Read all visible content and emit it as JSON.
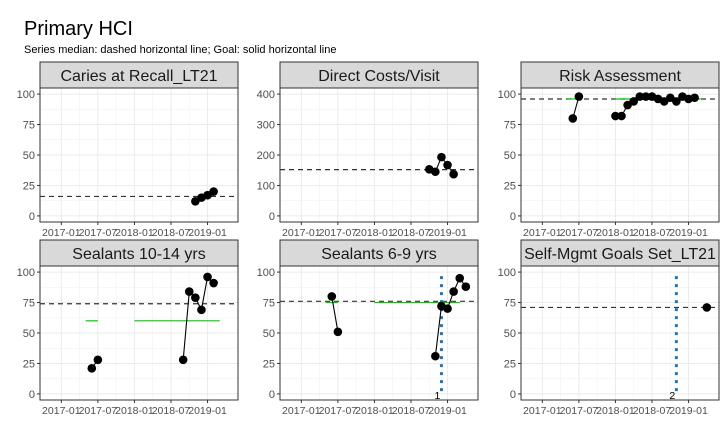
{
  "title": "Primary HCI",
  "subtitle": "Series median: dashed horizontal line; Goal: solid horizontal line",
  "colors": {
    "points": "#000000",
    "median": "#333333",
    "goal": "#00cc00",
    "annotation": "#1f77b4",
    "strip": "#d9d9d9",
    "grid": "#ebebeb"
  },
  "chart_data": [
    {
      "type": "line",
      "title": "Caries at Recall_LT21",
      "x_ticks": [
        "2017-01",
        "2017-07",
        "2018-01",
        "2018-07",
        "2019-01"
      ],
      "y_ticks": [
        0,
        25,
        50,
        75,
        100
      ],
      "ylim": [
        -5,
        105
      ],
      "series": [
        {
          "x": [
            "2018-11",
            "2018-12",
            "2019-01",
            "2019-02"
          ],
          "y": [
            12,
            15,
            17,
            20
          ]
        }
      ],
      "median": 16,
      "goal": null,
      "annotations": []
    },
    {
      "type": "line",
      "title": "Direct Costs/Visit",
      "x_ticks": [
        "2017-01",
        "2017-07",
        "2018-01",
        "2018-07",
        "2019-01"
      ],
      "y_ticks": [
        0,
        100,
        200,
        300,
        400
      ],
      "ylim": [
        -20,
        420
      ],
      "series": [
        {
          "x": [
            "2018-10",
            "2018-11",
            "2018-12",
            "2019-01",
            "2019-02"
          ],
          "y": [
            153,
            145,
            193,
            167,
            137
          ]
        }
      ],
      "median": 152,
      "goal": null,
      "annotations": []
    },
    {
      "type": "line",
      "title": "Risk Assessment",
      "x_ticks": [
        "2017-01",
        "2017-07",
        "2018-01",
        "2018-07",
        "2019-01"
      ],
      "y_ticks": [
        0,
        25,
        50,
        75,
        100
      ],
      "ylim": [
        -5,
        105
      ],
      "series": [
        {
          "x": [
            "2017-06",
            "2017-07"
          ],
          "y": [
            80,
            98
          ]
        },
        {
          "x": [
            "2018-01",
            "2018-02",
            "2018-03",
            "2018-04",
            "2018-05",
            "2018-06",
            "2018-07",
            "2018-08",
            "2018-09",
            "2018-10",
            "2018-11",
            "2018-12",
            "2019-01",
            "2019-02"
          ],
          "y": [
            82,
            82,
            91,
            94,
            98,
            98,
            98,
            96,
            94,
            97,
            94,
            98,
            96,
            97
          ]
        }
      ],
      "median": 96,
      "goal": [
        {
          "from": "2017-05",
          "to": "2017-07",
          "y": 96
        },
        {
          "from": "2018-01",
          "to": "2019-03",
          "y": 96
        }
      ],
      "annotations": []
    },
    {
      "type": "line",
      "title": "Sealants 10-14 yrs",
      "x_ticks": [
        "2017-01",
        "2017-07",
        "2018-01",
        "2018-07",
        "2019-01"
      ],
      "y_ticks": [
        0,
        25,
        50,
        75,
        100
      ],
      "ylim": [
        -5,
        105
      ],
      "series": [
        {
          "x": [
            "2017-06",
            "2017-07"
          ],
          "y": [
            21,
            28
          ]
        },
        {
          "x": [
            "2018-09",
            "2018-10",
            "2018-11",
            "2018-12",
            "2019-01",
            "2019-02"
          ],
          "y": [
            28,
            84,
            79,
            69,
            96,
            91
          ]
        }
      ],
      "median": 74,
      "goal": [
        {
          "from": "2017-05",
          "to": "2017-07",
          "y": 60
        },
        {
          "from": "2018-01",
          "to": "2019-03",
          "y": 60
        }
      ],
      "annotations": []
    },
    {
      "type": "line",
      "title": "Sealants 6-9 yrs",
      "x_ticks": [
        "2017-01",
        "2017-07",
        "2018-01",
        "2018-07",
        "2019-01"
      ],
      "y_ticks": [
        0,
        25,
        50,
        75,
        100
      ],
      "ylim": [
        -5,
        105
      ],
      "series": [
        {
          "x": [
            "2017-06",
            "2017-07"
          ],
          "y": [
            80,
            51
          ]
        },
        {
          "x": [
            "2018-11",
            "2018-12",
            "2019-01",
            "2019-02",
            "2019-03",
            "2019-04"
          ],
          "y": [
            31,
            72,
            70,
            84,
            95,
            88
          ]
        }
      ],
      "median": 76,
      "goal": [
        {
          "from": "2017-05",
          "to": "2017-07",
          "y": 75
        },
        {
          "from": "2018-01",
          "to": "2019-03",
          "y": 75
        }
      ],
      "annotations": [
        {
          "x": "2018-12",
          "label": "1"
        }
      ]
    },
    {
      "type": "line",
      "title": "Self-Mgmt Goals Set_LT21",
      "x_ticks": [
        "2017-01",
        "2017-07",
        "2018-01",
        "2018-07",
        "2019-01"
      ],
      "y_ticks": [
        0,
        25,
        50,
        75,
        100
      ],
      "ylim": [
        -5,
        105
      ],
      "series": [
        {
          "x": [
            "2019-04"
          ],
          "y": [
            71
          ]
        }
      ],
      "median": 71,
      "goal": null,
      "annotations": [
        {
          "x": "2018-11",
          "label": "2"
        }
      ]
    }
  ]
}
